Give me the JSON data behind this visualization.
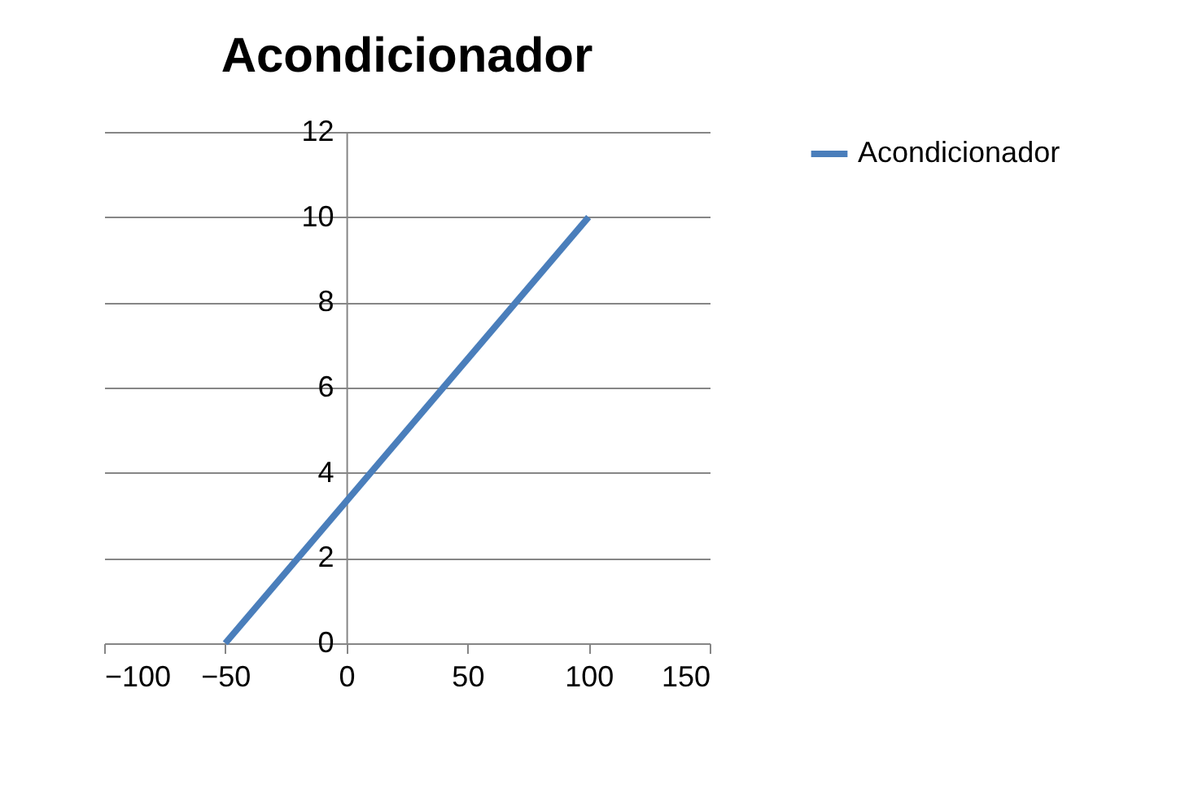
{
  "chart_data": {
    "type": "line",
    "title": "Acondicionador",
    "x": [
      -50,
      100
    ],
    "series": [
      {
        "name": "Acondicionador",
        "color": "#4a7ebb",
        "values": [
          0,
          10
        ]
      }
    ],
    "xlim": [
      -100,
      150
    ],
    "xticks": [
      -100,
      -50,
      0,
      50,
      100,
      150
    ],
    "ylim": [
      0,
      12
    ],
    "yticks": [
      0,
      2,
      4,
      6,
      8,
      10,
      12
    ],
    "grid": "y",
    "legend": "right",
    "marker": "none",
    "line_style": "solid"
  }
}
